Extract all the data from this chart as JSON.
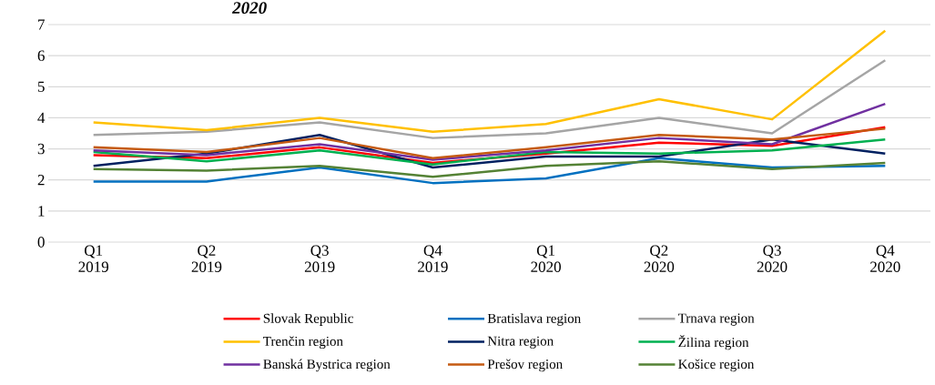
{
  "chart_data": {
    "type": "line",
    "title": "2020",
    "categories": [
      "Q1 2019",
      "Q2 2019",
      "Q3 2019",
      "Q4 2019",
      "Q1 2020",
      "Q2 2020",
      "Q3 2020",
      "Q4 2020"
    ],
    "ylim": [
      0,
      7
    ],
    "yticks": [
      0,
      1,
      2,
      3,
      4,
      5,
      6,
      7
    ],
    "grid": "y",
    "legend": "bottom",
    "marker": "none",
    "line_style": "solid",
    "series": [
      {
        "name": "Slovak Republic",
        "color": "#ff0000",
        "values": [
          2.8,
          2.7,
          3.05,
          2.55,
          2.85,
          3.2,
          3.1,
          3.7
        ]
      },
      {
        "name": "Bratislava region",
        "color": "#0070c0",
        "values": [
          1.95,
          1.95,
          2.4,
          1.9,
          2.05,
          2.7,
          2.4,
          2.45
        ]
      },
      {
        "name": "Trnava region",
        "color": "#a5a5a5",
        "values": [
          3.45,
          3.55,
          3.85,
          3.35,
          3.5,
          4.0,
          3.5,
          5.85
        ]
      },
      {
        "name": "Trenčin region",
        "color": "#ffc000",
        "values": [
          3.85,
          3.6,
          4.0,
          3.55,
          3.8,
          4.6,
          3.95,
          6.8
        ]
      },
      {
        "name": "Nitra region",
        "color": "#002060",
        "values": [
          2.45,
          2.85,
          3.45,
          2.4,
          2.75,
          2.75,
          3.3,
          2.85
        ]
      },
      {
        "name": "Žilina region",
        "color": "#00b050",
        "values": [
          2.9,
          2.6,
          2.95,
          2.5,
          2.9,
          2.85,
          2.95,
          3.3
        ]
      },
      {
        "name": "Banská Bystrica region",
        "color": "#7030a0",
        "values": [
          2.95,
          2.8,
          3.15,
          2.65,
          2.95,
          3.35,
          3.15,
          4.45
        ]
      },
      {
        "name": "Prešov region",
        "color": "#c55a11",
        "values": [
          3.05,
          2.9,
          3.35,
          2.7,
          3.05,
          3.45,
          3.3,
          3.65
        ]
      },
      {
        "name": "Košice region",
        "color": "#548235",
        "values": [
          2.35,
          2.3,
          2.45,
          2.1,
          2.45,
          2.6,
          2.35,
          2.55
        ]
      }
    ]
  }
}
